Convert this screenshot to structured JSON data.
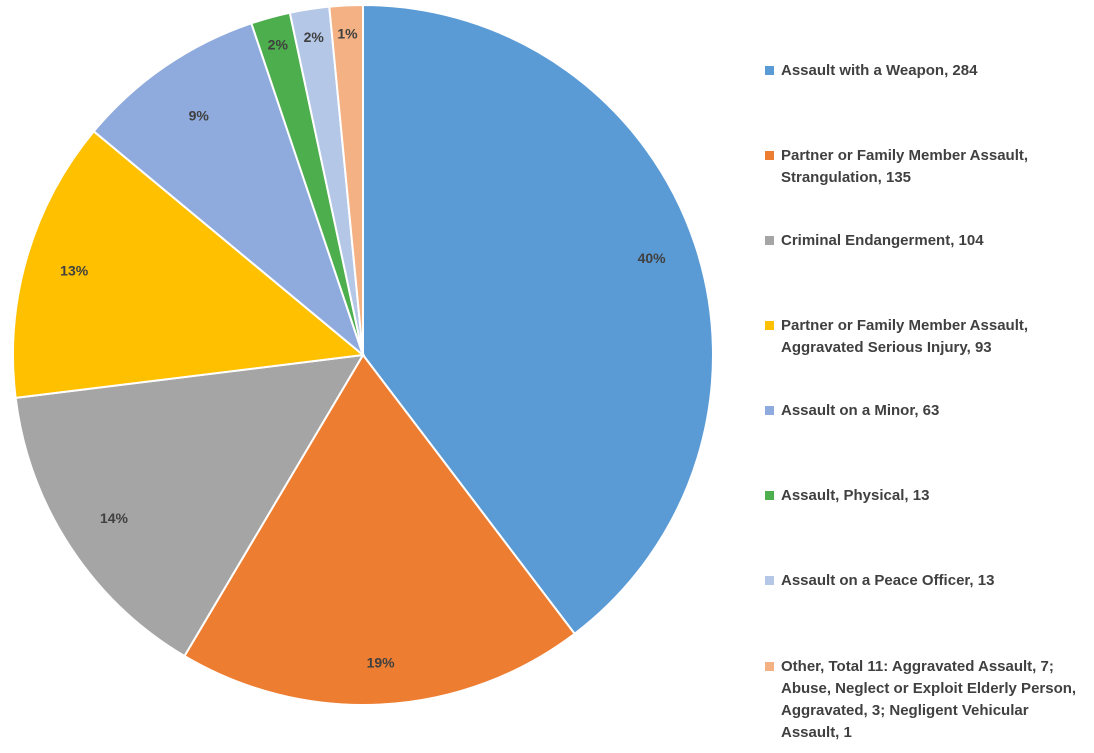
{
  "chart_data": {
    "type": "pie",
    "categories": [
      "Assault with a Weapon, 284",
      "Partner or Family Member Assault, Strangulation, 135",
      "Criminal Endangerment, 104",
      "Partner or Family Member Assault, Aggravated Serious Injury, 93",
      "Assault on a Minor, 63",
      "Assault, Physical, 13",
      "Assault on a Peace Officer, 13",
      "Other, Total 11: Aggravated Assault, 7; Abuse, Neglect or Exploit Elderly Person, Aggravated, 3; Negligent Vehicular Assault, 1"
    ],
    "values": [
      284,
      135,
      104,
      93,
      63,
      13,
      13,
      11
    ],
    "data_labels": [
      "40%",
      "19%",
      "14%",
      "13%",
      "9%",
      "2%",
      "2%",
      "1%"
    ],
    "colors": [
      "#5b9bd5",
      "#ed7d31",
      "#a5a5a5",
      "#ffc000",
      "#8faadc",
      "#4cae4c",
      "#b4c7e7",
      "#f4b183"
    ],
    "start_angle": "12 o'clock",
    "direction": "clockwise",
    "legend_position": "right"
  }
}
